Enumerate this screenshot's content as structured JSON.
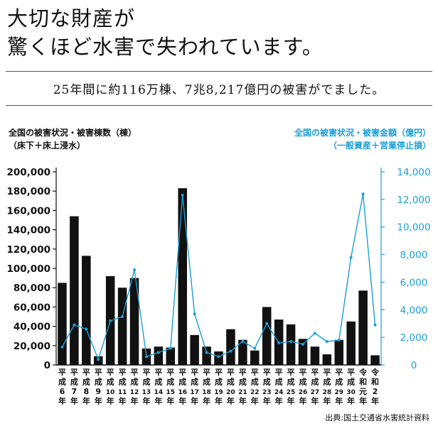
{
  "header": {
    "title_line1": "大切な財産が",
    "title_line2": "驚くほど水害で失われています。",
    "summary": "25年間に約116万棟、7兆8,217億円の被害がでました。"
  },
  "source": "出典:国土交通省水害統計資料",
  "colors": {
    "bar": "#111111",
    "line": "#1a9fd6"
  },
  "chart_data": {
    "type": "bar",
    "left_label": [
      "全国の被害状況・被害棟数（棟）",
      "（床下＋床上浸水）"
    ],
    "right_label": [
      "全国の被害状況・被害金額（億円）",
      "（一般資産＋営業停止損）"
    ],
    "categories": [
      "平成6年",
      "平成7年",
      "平成8年",
      "平成9年",
      "平成10年",
      "平成11年",
      "平成12年",
      "平成13年",
      "平成14年",
      "平成15年",
      "平成16年",
      "平成17年",
      "平成18年",
      "平成19年",
      "平成20年",
      "平成21年",
      "平成22年",
      "平成23年",
      "平成24年",
      "平成25年",
      "平成26年",
      "平成27年",
      "平成28年",
      "平成29年",
      "平成30年",
      "令和元年",
      "令和2年"
    ],
    "x_labels": [
      [
        "平",
        "成",
        "6",
        "年"
      ],
      [
        "平",
        "成",
        "7",
        "年"
      ],
      [
        "平",
        "成",
        "8",
        "年"
      ],
      [
        "平",
        "成",
        "9",
        "年"
      ],
      [
        "平",
        "成",
        "10",
        "年"
      ],
      [
        "平",
        "成",
        "11",
        "年"
      ],
      [
        "平",
        "成",
        "12",
        "年"
      ],
      [
        "平",
        "成",
        "13",
        "年"
      ],
      [
        "平",
        "成",
        "14",
        "年"
      ],
      [
        "平",
        "成",
        "15",
        "年"
      ],
      [
        "平",
        "成",
        "16",
        "年"
      ],
      [
        "平",
        "成",
        "17",
        "年"
      ],
      [
        "平",
        "成",
        "18",
        "年"
      ],
      [
        "平",
        "成",
        "19",
        "年"
      ],
      [
        "平",
        "成",
        "20",
        "年"
      ],
      [
        "平",
        "成",
        "21",
        "年"
      ],
      [
        "平",
        "成",
        "22",
        "年"
      ],
      [
        "平",
        "成",
        "23",
        "年"
      ],
      [
        "平",
        "成",
        "24",
        "年"
      ],
      [
        "平",
        "成",
        "25",
        "年"
      ],
      [
        "平",
        "成",
        "26",
        "年"
      ],
      [
        "平",
        "成",
        "27",
        "年"
      ],
      [
        "平",
        "成",
        "28",
        "年"
      ],
      [
        "平",
        "成",
        "29",
        "年"
      ],
      [
        "平",
        "成",
        "30",
        "年"
      ],
      [
        "令",
        "和",
        "元",
        "年"
      ],
      [
        "令",
        "和",
        "2",
        "年"
      ]
    ],
    "series": [
      {
        "axis": "left",
        "kind": "bar",
        "values": [
          85000,
          154000,
          113000,
          9000,
          92000,
          80000,
          90000,
          17000,
          19000,
          18000,
          183000,
          31000,
          19000,
          14000,
          37000,
          26000,
          15000,
          60000,
          47000,
          42000,
          27000,
          19000,
          11000,
          26000,
          45000,
          77000,
          10000
        ]
      },
      {
        "axis": "right",
        "kind": "line",
        "values": [
          1300,
          2900,
          2600,
          400,
          3200,
          3500,
          6900,
          600,
          900,
          1200,
          12300,
          3700,
          900,
          600,
          1000,
          1700,
          1200,
          3000,
          1600,
          1700,
          1500,
          2300,
          1700,
          1800,
          7800,
          12400,
          2900
        ]
      }
    ],
    "left_axis": {
      "ylim": [
        0,
        200000
      ],
      "ticks": [
        "0",
        "20,000",
        "40,000",
        "60,000",
        "80,000",
        "100,000",
        "120,000",
        "140,000",
        "160,000",
        "180,000",
        "200,000"
      ]
    },
    "right_axis": {
      "ylim": [
        0,
        14000
      ],
      "ticks": [
        "0",
        "2,000",
        "4,000",
        "6,000",
        "8,000",
        "10,000",
        "12,000",
        "14,000"
      ]
    }
  }
}
